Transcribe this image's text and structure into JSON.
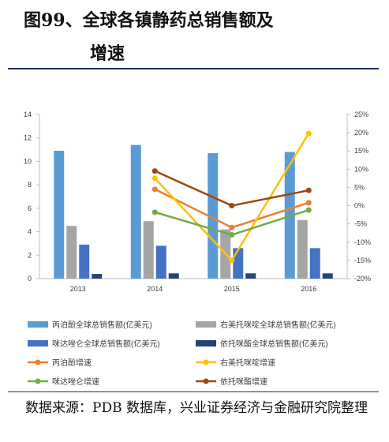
{
  "header": {
    "title_line1": "图99、全球各镇静药总销售额及",
    "title_line2": "增速"
  },
  "source": "数据来源：PDB 数据库，兴业证券经济与金融研究院整理",
  "chart_data": {
    "type": "bar+line",
    "categories": [
      "2013",
      "2014",
      "2015",
      "2016"
    ],
    "left_axis": {
      "min": 0,
      "max": 14,
      "step": 2,
      "ticks": [
        "0",
        "2",
        "4",
        "6",
        "8",
        "10",
        "12",
        "14"
      ]
    },
    "right_axis": {
      "min": -20,
      "max": 25,
      "step": 5,
      "ticks": [
        "-20%",
        "-15%",
        "-10%",
        "-5%",
        "0%",
        "5%",
        "10%",
        "15%",
        "20%",
        "25%"
      ]
    },
    "bar_series": [
      {
        "name": "丙泊酚全球总销售额(亿美元)",
        "color": "#5b9bd5",
        "values": [
          10.9,
          11.4,
          10.7,
          10.8
        ]
      },
      {
        "name": "右美托咪啶全球总销售额(亿美元)",
        "color": "#a5a5a5",
        "values": [
          4.5,
          4.9,
          4.2,
          5.0
        ]
      },
      {
        "name": "咪达唑仑全球总销售额(亿美元)",
        "color": "#4472c4",
        "values": [
          2.9,
          2.8,
          2.6,
          2.6
        ]
      },
      {
        "name": "依托咪酯全球总销售额(亿美元)",
        "color": "#264478",
        "values": [
          0.4,
          0.45,
          0.45,
          0.45
        ]
      }
    ],
    "line_series": [
      {
        "name": "丙泊酚增速",
        "color": "#ed7d31",
        "values": [
          null,
          4.5,
          -6.0,
          0.8
        ]
      },
      {
        "name": "右美托咪啶增速",
        "color": "#ffc000",
        "values": [
          null,
          7.5,
          -15.0,
          19.8
        ]
      },
      {
        "name": "咪达唑仑增速",
        "color": "#70ad47",
        "values": [
          null,
          -1.8,
          -8.0,
          -1.2
        ]
      },
      {
        "name": "依托咪酯增速",
        "color": "#9e480e",
        "values": [
          null,
          9.5,
          0.0,
          4.2
        ]
      }
    ]
  }
}
